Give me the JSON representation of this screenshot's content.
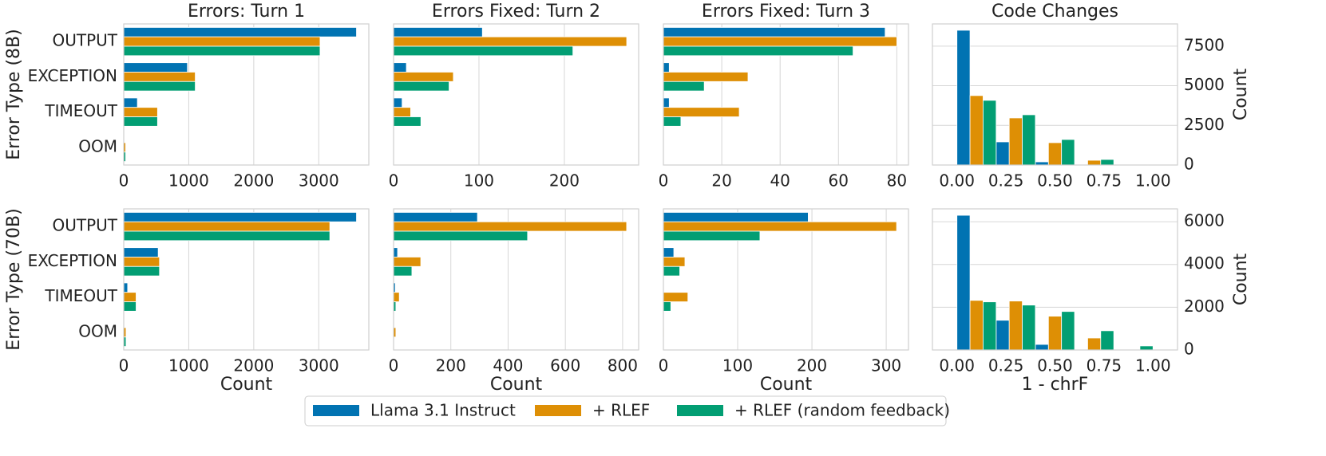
{
  "chart_data": [
    {
      "type": "bar",
      "title": "Errors: Turn 1",
      "ylabel": "Error Type (8B)",
      "categories": [
        "OUTPUT",
        "EXCEPTION",
        "TIMEOUT",
        "OOM"
      ],
      "series": [
        {
          "name": "Llama 3.1 Instruct",
          "color": "#0173b2",
          "values": [
            3580,
            980,
            210,
            5
          ]
        },
        {
          "name": "+ RLEF",
          "color": "#de8f05",
          "values": [
            3020,
            1100,
            520,
            30
          ]
        },
        {
          "name": "+ RLEF (random feedback)",
          "color": "#029e73",
          "values": [
            3020,
            1100,
            520,
            30
          ]
        }
      ],
      "xlim": [
        0,
        3770
      ],
      "xticks": [
        0,
        1000,
        2000,
        3000
      ],
      "grid": true
    },
    {
      "type": "bar",
      "title": "Errors Fixed: Turn 2",
      "series": [
        {
          "color": "#0173b2",
          "values": [
            104,
            15,
            10,
            0
          ]
        },
        {
          "color": "#de8f05",
          "values": [
            273,
            70,
            20,
            0
          ]
        },
        {
          "color": "#029e73",
          "values": [
            210,
            65,
            32,
            0
          ]
        }
      ],
      "xlim": [
        0,
        287
      ],
      "xticks": [
        0,
        100,
        200
      ],
      "grid": true
    },
    {
      "type": "bar",
      "title": "Errors Fixed: Turn 3",
      "series": [
        {
          "color": "#0173b2",
          "values": [
            76,
            2,
            2,
            0
          ]
        },
        {
          "color": "#de8f05",
          "values": [
            80,
            29,
            26,
            0
          ]
        },
        {
          "color": "#029e73",
          "values": [
            65,
            14,
            6,
            0
          ]
        }
      ],
      "xlim": [
        0,
        84
      ],
      "xticks": [
        0,
        20,
        40,
        60,
        80
      ],
      "grid": true
    },
    {
      "type": "histogram",
      "title": "Code Changes",
      "ylabel": "Count",
      "bins": [
        0,
        0.2,
        0.4,
        0.6,
        0.8,
        1.0
      ],
      "series": [
        {
          "color": "#0173b2",
          "values": [
            8500,
            1460,
            200,
            0,
            0
          ]
        },
        {
          "color": "#de8f05",
          "values": [
            4380,
            2970,
            1410,
            300,
            0
          ]
        },
        {
          "color": "#029e73",
          "values": [
            4080,
            3170,
            1610,
            350,
            0
          ]
        }
      ],
      "xlim": [
        -0.125,
        1.125
      ],
      "xticks": [
        {
          "value": 0,
          "label": "0.00"
        },
        0.25,
        {
          "value": 0.5,
          "label": "0.50"
        },
        0.75,
        {
          "value": 1,
          "label": "1.00"
        }
      ],
      "ylim": [
        0,
        8900
      ],
      "yticks": [
        0,
        2500,
        5000,
        7500
      ],
      "grid": true
    },
    {
      "type": "bar",
      "ylabel": "Error Type (70B)",
      "xlabel": "Count",
      "categories": [
        "OUTPUT",
        "EXCEPTION",
        "TIMEOUT",
        "OOM"
      ],
      "series": [
        {
          "color": "#0173b2",
          "values": [
            3580,
            530,
            60,
            10
          ]
        },
        {
          "color": "#de8f05",
          "values": [
            3170,
            550,
            190,
            35
          ]
        },
        {
          "color": "#029e73",
          "values": [
            3170,
            550,
            190,
            35
          ]
        }
      ],
      "xlim": [
        0,
        3770
      ],
      "xticks": [
        0,
        1000,
        2000,
        3000
      ],
      "grid": true
    },
    {
      "type": "bar",
      "xlabel": "Count",
      "series": [
        {
          "color": "#0173b2",
          "values": [
            293,
            14,
            6,
            0
          ]
        },
        {
          "color": "#de8f05",
          "values": [
            814,
            95,
            20,
            8
          ]
        },
        {
          "color": "#029e73",
          "values": [
            468,
            64,
            8,
            0
          ]
        }
      ],
      "xlim": [
        0,
        856
      ],
      "xticks": [
        0,
        200,
        400,
        600,
        800
      ],
      "grid": true
    },
    {
      "type": "bar",
      "xlabel": "Count",
      "series": [
        {
          "color": "#0173b2",
          "values": [
            195,
            14,
            0,
            0
          ]
        },
        {
          "color": "#de8f05",
          "values": [
            314,
            29,
            33,
            1
          ]
        },
        {
          "color": "#029e73",
          "values": [
            130,
            22,
            10,
            0
          ]
        }
      ],
      "xlim": [
        0,
        330
      ],
      "xticks": [
        0,
        100,
        200,
        300
      ],
      "grid": true
    },
    {
      "type": "histogram",
      "ylabel": "Count",
      "xlabel": "1 - chrF",
      "bins": [
        0,
        0.2,
        0.4,
        0.6,
        0.8,
        1.0
      ],
      "series": [
        {
          "color": "#0173b2",
          "values": [
            6300,
            1390,
            260,
            0,
            0
          ]
        },
        {
          "color": "#de8f05",
          "values": [
            2320,
            2290,
            1580,
            560,
            0
          ]
        },
        {
          "color": "#029e73",
          "values": [
            2250,
            2100,
            1800,
            900,
            190
          ]
        }
      ],
      "xlim": [
        -0.125,
        1.125
      ],
      "xticks": [
        {
          "value": 0,
          "label": "0.00"
        },
        0.25,
        {
          "value": 0.5,
          "label": "0.50"
        },
        0.75,
        {
          "value": 1,
          "label": "1.00"
        }
      ],
      "ylim": [
        0,
        6600
      ],
      "yticks": [
        0,
        2000,
        4000,
        6000
      ],
      "grid": true
    }
  ]
}
